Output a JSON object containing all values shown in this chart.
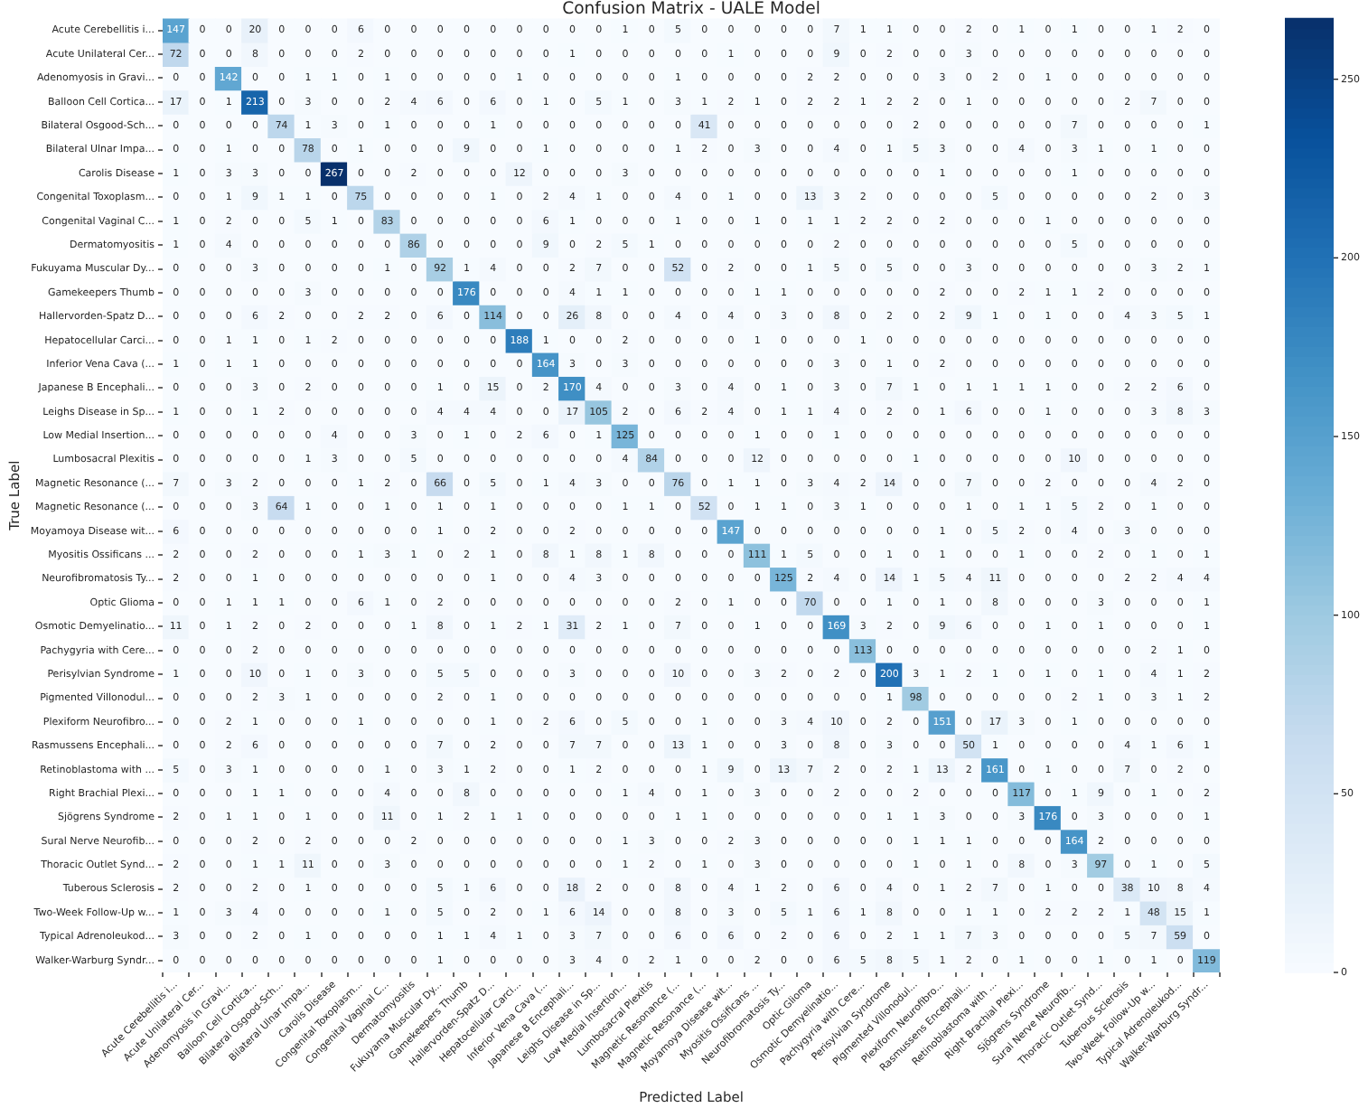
{
  "chart_data": {
    "type": "heatmap",
    "title": "Confusion Matrix - UALE Model",
    "xlabel": "Predicted Label",
    "ylabel": "True Label",
    "categories": [
      "Acute Cerebellitis i...",
      "Acute Unilateral Cer...",
      "Adenomyosis in Gravi...",
      "Balloon Cell Cortica...",
      "Bilateral Osgood-Sch...",
      "Bilateral Ulnar Impa...",
      "Carolis Disease",
      "Congenital Toxoplasm...",
      "Congenital Vaginal C...",
      "Dermatomyositis",
      "Fukuyama Muscular Dy...",
      "Gamekeepers Thumb",
      "Hallervorden-Spatz D...",
      "Hepatocellular Carci...",
      "Inferior Vena Cava (...",
      "Japanese B Encephali...",
      "Leighs Disease in Sp...",
      "Low Medial Insertion...",
      "Lumbosacral Plexitis",
      "Magnetic Resonance (...",
      "Magnetic Resonance (...",
      "Moyamoya Disease wit...",
      "Myositis Ossificans ...",
      "Neurofibromatosis Ty...",
      "Optic Glioma",
      "Osmotic Demyelinatio...",
      "Pachygyria with Cere...",
      "Perisylvian Syndrome",
      "Pigmented Villonodul...",
      "Plexiform Neurofibro...",
      "Rasmussens Encephali...",
      "Retinoblastoma with ...",
      "Right Brachial Plexi...",
      "Sjögrens Syndrome",
      "Sural Nerve Neurofib...",
      "Thoracic Outlet Synd...",
      "Tuberous Sclerosis",
      "Two-Week Follow-Up w...",
      "Typical Adrenoleukod...",
      "Walker-Warburg Syndr..."
    ],
    "y_categories": [
      "Acute Cerebellitis i...",
      "Acute Unilateral Cer...",
      "Adenomyosis in Gravi...",
      "Balloon Cell Cortica...",
      "Bilateral Osgood-Sch...",
      "Bilateral Ulnar Impa...",
      "Carolis Disease",
      "Congenital Toxoplasm...",
      "Congenital Vaginal C...",
      "Dermatomyositis",
      "Fukuyama Muscular Dy...",
      "Gamekeepers Thumb",
      "Hallervorden-Spatz D...",
      "Hepatocellular Carci...",
      "Inferior Vena Cava (...",
      "Japanese B Encephali...",
      "Leighs Disease in Sp...",
      "Low Medial Insertion...",
      "Lumbosacral Plexitis",
      "Magnetic Resonance (...",
      "Magnetic Resonance (...",
      "Moyamoya Disease wit...",
      "Myositis Ossificans ...",
      "Neurofibromatosis Ty...",
      "Optic Glioma",
      "Osmotic Demyelinatio...",
      "Pachygyria with Cere...",
      "Perisylvian Syndrome",
      "Pigmented Villonodul...",
      "Plexiform Neurofibro...",
      "Rasmussens Encephali...",
      "Retinoblastoma with ...",
      "Right Brachial Plexi...",
      "Sjögrens Syndrome",
      "Sural Nerve Neurofib...",
      "Thoracic Outlet Synd...",
      "Tuberous Sclerosis",
      "Two-Week Follow-Up w...",
      "Typical Adrenoleukod...",
      "Walker-Warburg Syndr..."
    ],
    "cells": [
      [
        147,
        0,
        0,
        20,
        0,
        0,
        0,
        6,
        0,
        0,
        0,
        0,
        0,
        0,
        0,
        0,
        0,
        1,
        0,
        5,
        0,
        0,
        0,
        0,
        0,
        7,
        1,
        1,
        0,
        0,
        2,
        0,
        1,
        0,
        1,
        0,
        0,
        1,
        2,
        0
      ],
      [
        72,
        0,
        0,
        8,
        0,
        0,
        0,
        2,
        0,
        0,
        0,
        0,
        0,
        0,
        0,
        1,
        0,
        0,
        0,
        0,
        0,
        1,
        0,
        0,
        0,
        9,
        0,
        2,
        0,
        0,
        3,
        0,
        0,
        0,
        0,
        0,
        0,
        0,
        0,
        0
      ],
      [
        0,
        0,
        142,
        0,
        0,
        1,
        1,
        0,
        1,
        0,
        0,
        0,
        0,
        1,
        0,
        0,
        0,
        0,
        0,
        1,
        0,
        0,
        0,
        0,
        2,
        2,
        0,
        0,
        0,
        3,
        0,
        2,
        0,
        1,
        0,
        0,
        0,
        0,
        0,
        0
      ],
      [
        17,
        0,
        1,
        213,
        0,
        3,
        0,
        0,
        2,
        4,
        6,
        0,
        6,
        0,
        1,
        0,
        5,
        1,
        0,
        3,
        1,
        2,
        1,
        0,
        2,
        2,
        1,
        2,
        2,
        0,
        1,
        0,
        0,
        0,
        0,
        0,
        2,
        7,
        0,
        0
      ],
      [
        0,
        0,
        0,
        0,
        74,
        1,
        3,
        0,
        1,
        0,
        0,
        0,
        1,
        0,
        0,
        0,
        0,
        0,
        0,
        0,
        41,
        0,
        0,
        0,
        0,
        0,
        0,
        0,
        2,
        0,
        0,
        0,
        0,
        0,
        7,
        0,
        0,
        0,
        0,
        1
      ],
      [
        0,
        0,
        1,
        0,
        0,
        78,
        0,
        1,
        0,
        0,
        0,
        9,
        0,
        0,
        1,
        0,
        0,
        0,
        0,
        1,
        2,
        0,
        3,
        0,
        0,
        4,
        0,
        1,
        5,
        3,
        0,
        0,
        4,
        0,
        3,
        1,
        0,
        1,
        0,
        0
      ],
      [
        1,
        0,
        3,
        3,
        0,
        0,
        267,
        0,
        0,
        2,
        0,
        0,
        0,
        12,
        0,
        0,
        0,
        3,
        0,
        0,
        0,
        0,
        0,
        0,
        0,
        0,
        0,
        0,
        0,
        1,
        0,
        0,
        0,
        0,
        1,
        0,
        0,
        0,
        0,
        0
      ],
      [
        0,
        0,
        1,
        9,
        1,
        1,
        0,
        75,
        0,
        0,
        0,
        0,
        1,
        0,
        2,
        4,
        1,
        0,
        0,
        4,
        0,
        1,
        0,
        0,
        13,
        3,
        2,
        0,
        0,
        0,
        0,
        5,
        0,
        0,
        0,
        0,
        0,
        2,
        0,
        3
      ],
      [
        1,
        0,
        2,
        0,
        0,
        5,
        1,
        0,
        83,
        0,
        0,
        0,
        0,
        0,
        6,
        1,
        0,
        0,
        0,
        1,
        0,
        0,
        1,
        0,
        1,
        1,
        2,
        2,
        0,
        2,
        0,
        0,
        0,
        1,
        0,
        0,
        0,
        0,
        0,
        0
      ],
      [
        1,
        0,
        4,
        0,
        0,
        0,
        0,
        0,
        0,
        86,
        0,
        0,
        0,
        0,
        9,
        0,
        2,
        5,
        1,
        0,
        0,
        0,
        0,
        0,
        0,
        2,
        0,
        0,
        0,
        0,
        0,
        0,
        0,
        0,
        5,
        0,
        0,
        0,
        0,
        0
      ],
      [
        0,
        0,
        0,
        3,
        0,
        0,
        0,
        0,
        1,
        0,
        92,
        1,
        4,
        0,
        0,
        2,
        7,
        0,
        0,
        52,
        0,
        2,
        0,
        0,
        1,
        5,
        0,
        5,
        0,
        0,
        3,
        0,
        0,
        0,
        0,
        0,
        0,
        3,
        2,
        1
      ],
      [
        0,
        0,
        0,
        0,
        0,
        3,
        0,
        0,
        0,
        0,
        0,
        176,
        0,
        0,
        0,
        4,
        1,
        1,
        0,
        0,
        0,
        0,
        1,
        1,
        0,
        0,
        0,
        0,
        0,
        2,
        0,
        0,
        2,
        1,
        1,
        2,
        0,
        0,
        0,
        0
      ],
      [
        0,
        0,
        0,
        6,
        2,
        0,
        0,
        2,
        2,
        0,
        6,
        0,
        114,
        0,
        0,
        26,
        8,
        0,
        0,
        4,
        0,
        4,
        0,
        3,
        0,
        8,
        0,
        2,
        0,
        2,
        9,
        1,
        0,
        1,
        0,
        0,
        4,
        3,
        5,
        1
      ],
      [
        0,
        0,
        1,
        1,
        0,
        1,
        2,
        0,
        0,
        0,
        0,
        0,
        0,
        188,
        1,
        0,
        0,
        2,
        0,
        0,
        0,
        0,
        1,
        0,
        0,
        0,
        1,
        0,
        0,
        0,
        0,
        0,
        0,
        0,
        0,
        0,
        0,
        0,
        0,
        0
      ],
      [
        1,
        0,
        1,
        1,
        0,
        0,
        0,
        0,
        0,
        0,
        0,
        0,
        0,
        0,
        164,
        3,
        0,
        3,
        0,
        0,
        0,
        0,
        0,
        0,
        0,
        3,
        0,
        1,
        0,
        2,
        0,
        0,
        0,
        0,
        0,
        0,
        0,
        0,
        0,
        0
      ],
      [
        0,
        0,
        0,
        3,
        0,
        2,
        0,
        0,
        0,
        0,
        1,
        0,
        15,
        0,
        2,
        170,
        4,
        0,
        0,
        3,
        0,
        4,
        0,
        1,
        0,
        3,
        0,
        7,
        1,
        0,
        1,
        1,
        1,
        1,
        0,
        0,
        2,
        2,
        6,
        0
      ],
      [
        1,
        0,
        0,
        1,
        2,
        0,
        0,
        0,
        0,
        0,
        4,
        4,
        4,
        0,
        0,
        17,
        105,
        2,
        0,
        6,
        2,
        4,
        0,
        1,
        1,
        4,
        0,
        2,
        0,
        1,
        6,
        0,
        0,
        1,
        0,
        0,
        0,
        3,
        8,
        3
      ],
      [
        0,
        0,
        0,
        0,
        0,
        0,
        4,
        0,
        0,
        3,
        0,
        1,
        0,
        2,
        6,
        0,
        1,
        125,
        0,
        0,
        0,
        0,
        1,
        0,
        0,
        1,
        0,
        0,
        0,
        0,
        0,
        0,
        0,
        0,
        0,
        0,
        0,
        0,
        0,
        0
      ],
      [
        0,
        0,
        0,
        0,
        0,
        1,
        3,
        0,
        0,
        5,
        0,
        0,
        0,
        0,
        0,
        0,
        0,
        4,
        84,
        0,
        0,
        0,
        12,
        0,
        0,
        0,
        0,
        0,
        1,
        0,
        0,
        0,
        0,
        0,
        10,
        0,
        0,
        0,
        0,
        0
      ],
      [
        7,
        0,
        3,
        2,
        0,
        0,
        0,
        1,
        2,
        0,
        66,
        0,
        5,
        0,
        1,
        4,
        3,
        0,
        0,
        76,
        0,
        1,
        1,
        0,
        3,
        4,
        2,
        14,
        0,
        0,
        7,
        0,
        0,
        2,
        0,
        0,
        0,
        4,
        2,
        0
      ],
      [
        0,
        0,
        0,
        3,
        64,
        1,
        0,
        0,
        1,
        0,
        1,
        0,
        1,
        0,
        0,
        0,
        0,
        1,
        1,
        0,
        52,
        0,
        1,
        1,
        0,
        3,
        1,
        0,
        0,
        0,
        1,
        0,
        1,
        1,
        5,
        2,
        0,
        1,
        0,
        0
      ],
      [
        6,
        0,
        0,
        0,
        0,
        0,
        0,
        0,
        0,
        0,
        1,
        0,
        2,
        0,
        0,
        2,
        0,
        0,
        0,
        0,
        0,
        147,
        0,
        0,
        0,
        0,
        0,
        0,
        0,
        1,
        0,
        5,
        2,
        0,
        4,
        0,
        3,
        0,
        0,
        0
      ],
      [
        2,
        0,
        0,
        2,
        0,
        0,
        0,
        1,
        3,
        1,
        0,
        2,
        1,
        0,
        8,
        1,
        8,
        1,
        8,
        0,
        0,
        0,
        111,
        1,
        5,
        0,
        0,
        1,
        0,
        1,
        0,
        0,
        1,
        0,
        0,
        2,
        0,
        1,
        0,
        1
      ],
      [
        2,
        0,
        0,
        1,
        0,
        0,
        0,
        0,
        0,
        0,
        0,
        0,
        1,
        0,
        0,
        4,
        3,
        0,
        0,
        0,
        0,
        0,
        0,
        125,
        2,
        4,
        0,
        14,
        1,
        5,
        4,
        11,
        0,
        0,
        0,
        0,
        2,
        2,
        4,
        4
      ],
      [
        0,
        0,
        1,
        1,
        1,
        0,
        0,
        6,
        1,
        0,
        2,
        0,
        0,
        0,
        0,
        0,
        0,
        0,
        0,
        2,
        0,
        1,
        0,
        0,
        70,
        0,
        0,
        1,
        0,
        1,
        0,
        8,
        0,
        0,
        0,
        3,
        0,
        0,
        0,
        1
      ],
      [
        11,
        0,
        1,
        2,
        0,
        2,
        0,
        0,
        0,
        1,
        8,
        0,
        1,
        2,
        1,
        31,
        2,
        1,
        0,
        7,
        0,
        0,
        1,
        0,
        0,
        169,
        3,
        2,
        0,
        9,
        6,
        0,
        0,
        1,
        0,
        1,
        0,
        0,
        0,
        1
      ],
      [
        0,
        0,
        0,
        2,
        0,
        0,
        0,
        0,
        0,
        0,
        0,
        0,
        0,
        0,
        0,
        0,
        0,
        0,
        0,
        0,
        0,
        0,
        0,
        0,
        0,
        0,
        113,
        0,
        0,
        0,
        0,
        0,
        0,
        0,
        0,
        0,
        0,
        2,
        1,
        0
      ],
      [
        1,
        0,
        0,
        10,
        0,
        1,
        0,
        3,
        0,
        0,
        5,
        5,
        0,
        0,
        0,
        3,
        0,
        0,
        0,
        10,
        0,
        0,
        3,
        2,
        0,
        2,
        0,
        200,
        3,
        1,
        2,
        1,
        0,
        1,
        0,
        1,
        0,
        4,
        1,
        2
      ],
      [
        0,
        0,
        0,
        2,
        3,
        1,
        0,
        0,
        0,
        0,
        2,
        0,
        1,
        0,
        0,
        0,
        0,
        0,
        0,
        0,
        0,
        0,
        0,
        0,
        0,
        0,
        0,
        1,
        98,
        0,
        0,
        0,
        0,
        0,
        2,
        1,
        0,
        3,
        1,
        2
      ],
      [
        0,
        0,
        2,
        1,
        0,
        0,
        0,
        1,
        0,
        0,
        0,
        0,
        1,
        0,
        2,
        6,
        0,
        5,
        0,
        0,
        1,
        0,
        0,
        3,
        4,
        10,
        0,
        2,
        0,
        151,
        0,
        17,
        3,
        0,
        1,
        0,
        0,
        0,
        0,
        0
      ],
      [
        0,
        0,
        2,
        6,
        0,
        0,
        0,
        0,
        0,
        0,
        7,
        0,
        2,
        0,
        0,
        7,
        7,
        0,
        0,
        13,
        1,
        0,
        0,
        3,
        0,
        8,
        0,
        3,
        0,
        0,
        50,
        1,
        0,
        0,
        0,
        0,
        4,
        1,
        6,
        1
      ],
      [
        5,
        0,
        3,
        1,
        0,
        0,
        0,
        0,
        1,
        0,
        3,
        1,
        2,
        0,
        0,
        1,
        2,
        0,
        0,
        0,
        1,
        9,
        0,
        13,
        7,
        2,
        0,
        2,
        1,
        13,
        2,
        161,
        0,
        1,
        0,
        0,
        7,
        0,
        2,
        0
      ],
      [
        0,
        0,
        0,
        1,
        1,
        0,
        0,
        0,
        4,
        0,
        0,
        8,
        0,
        0,
        0,
        0,
        0,
        1,
        4,
        0,
        1,
        0,
        3,
        0,
        0,
        2,
        0,
        0,
        2,
        0,
        0,
        0,
        117,
        0,
        1,
        9,
        0,
        1,
        0,
        2
      ],
      [
        2,
        0,
        1,
        1,
        0,
        1,
        0,
        0,
        11,
        0,
        1,
        2,
        1,
        1,
        0,
        0,
        0,
        0,
        0,
        1,
        1,
        0,
        0,
        0,
        0,
        0,
        0,
        1,
        1,
        3,
        0,
        0,
        3,
        176,
        0,
        3,
        0,
        0,
        0,
        1
      ],
      [
        0,
        0,
        0,
        2,
        0,
        2,
        0,
        0,
        0,
        2,
        0,
        0,
        0,
        0,
        0,
        0,
        0,
        1,
        3,
        0,
        0,
        2,
        3,
        0,
        0,
        0,
        0,
        0,
        1,
        1,
        1,
        0,
        0,
        0,
        164,
        2,
        0,
        0,
        0,
        0
      ],
      [
        2,
        0,
        0,
        1,
        1,
        11,
        0,
        0,
        3,
        0,
        0,
        0,
        0,
        0,
        0,
        0,
        0,
        1,
        2,
        0,
        1,
        0,
        3,
        0,
        0,
        0,
        0,
        0,
        1,
        0,
        1,
        0,
        8,
        0,
        3,
        97,
        0,
        1,
        0,
        5
      ],
      [
        2,
        0,
        0,
        2,
        0,
        1,
        0,
        0,
        0,
        0,
        5,
        1,
        6,
        0,
        0,
        18,
        2,
        0,
        0,
        8,
        0,
        4,
        1,
        2,
        0,
        6,
        0,
        4,
        0,
        1,
        2,
        7,
        0,
        1,
        0,
        0,
        38,
        10,
        8,
        4
      ],
      [
        1,
        0,
        3,
        4,
        0,
        0,
        0,
        0,
        1,
        0,
        5,
        0,
        2,
        0,
        1,
        6,
        14,
        0,
        0,
        8,
        0,
        3,
        0,
        5,
        1,
        6,
        1,
        8,
        0,
        0,
        1,
        1,
        0,
        2,
        2,
        2,
        1,
        48,
        15,
        1
      ],
      [
        3,
        0,
        0,
        2,
        0,
        1,
        0,
        0,
        0,
        0,
        1,
        1,
        4,
        1,
        0,
        3,
        7,
        0,
        0,
        6,
        0,
        6,
        0,
        2,
        0,
        6,
        0,
        2,
        1,
        1,
        7,
        3,
        0,
        0,
        0,
        0,
        5,
        7,
        59,
        0
      ],
      [
        0,
        0,
        0,
        0,
        0,
        0,
        0,
        0,
        0,
        0,
        1,
        0,
        0,
        0,
        0,
        3,
        4,
        0,
        2,
        1,
        0,
        0,
        2,
        0,
        0,
        6,
        5,
        8,
        5,
        1,
        2,
        0,
        1,
        0,
        0,
        1,
        0,
        1,
        0,
        119
      ]
    ],
    "clim": [
      0,
      267
    ],
    "cticks": [
      0,
      50,
      100,
      150,
      200,
      250
    ],
    "data_labels": true
  }
}
